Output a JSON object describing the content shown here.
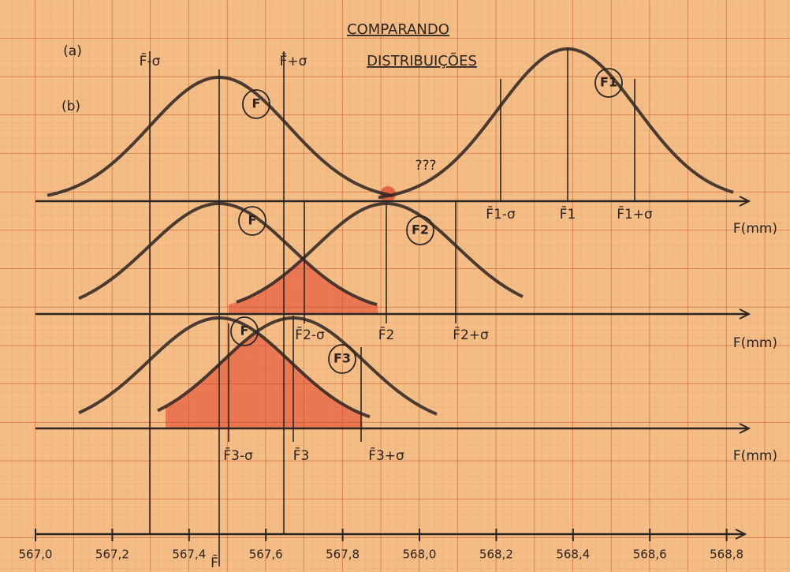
{
  "title": "COMPARANDO",
  "subtitle": "DISTRIBUIÇÕES",
  "labels": [
    "(a)",
    "(b)",
    "F̄-σ",
    "F̄+σ",
    "F̄1-σ",
    "F̄1",
    "F̄1+σ",
    "F(mm)",
    "F̄2-σ",
    "F̄2",
    "F̄2+σ",
    "F(mm)",
    "F̄3-σ",
    "F̄3",
    "F̄3+σ",
    "F(mm)",
    "???",
    "F̄"
  ],
  "circled": [
    "F",
    "F1",
    "F",
    "F2",
    "F",
    "F3"
  ],
  "axis_labels": [
    "567,0",
    "567,2",
    "567,4",
    "567,6",
    "567,8",
    "568,0",
    "568,2",
    "568,4",
    "568,6",
    "568,8"
  ]
}
